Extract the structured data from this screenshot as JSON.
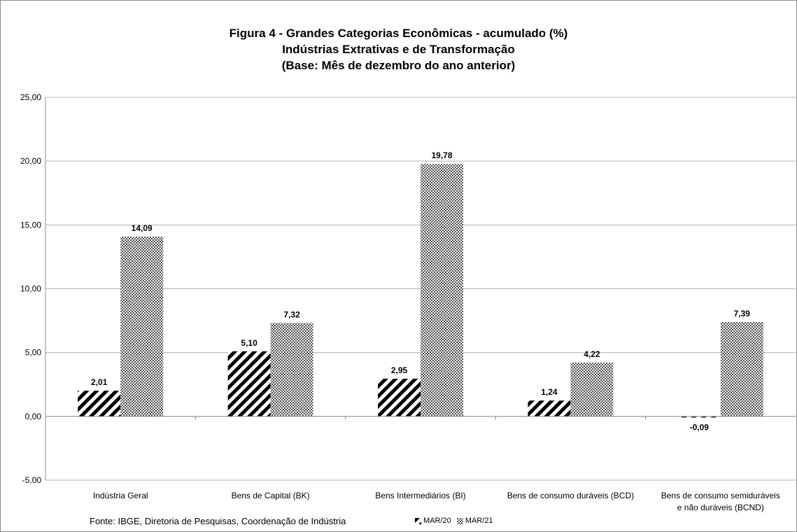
{
  "chart_data": {
    "type": "bar",
    "title": "Figura 4 - Grandes Categorias Econômicas - acumulado (%)",
    "subtitle_line1": "Indústrias Extrativas e de Transformação",
    "subtitle_line2": "(Base: Mês de dezembro do ano anterior)",
    "categories": [
      [
        "Indústria Geral"
      ],
      [
        "Bens de Capital (BK)"
      ],
      [
        "Bens Intermediários (BI)"
      ],
      [
        "Bens de consumo duráveis (BCD)"
      ],
      [
        "Bens de consumo semiduráveis",
        "e não duráveis (BCND)"
      ]
    ],
    "series": [
      {
        "name": "MAR/20",
        "values": [
          2.01,
          5.1,
          2.95,
          1.24,
          -0.09
        ],
        "labels": [
          "2,01",
          "5,10",
          "2,95",
          "1,24",
          "-0,09"
        ],
        "pattern": "diagonal-stripes"
      },
      {
        "name": "MAR/21",
        "values": [
          14.09,
          7.32,
          19.78,
          4.22,
          7.39
        ],
        "labels": [
          "14,09",
          "7,32",
          "19,78",
          "4,22",
          "7,39"
        ],
        "pattern": "checkered"
      }
    ],
    "ylim": [
      -5,
      25
    ],
    "yticks": [
      25,
      20,
      15,
      10,
      5,
      0,
      -5
    ],
    "ytick_labels": [
      "25,00",
      "20,00",
      "15,00",
      "10,00",
      "5,00",
      "0,00",
      "-5,00"
    ],
    "grid": true,
    "legend_position": "bottom",
    "source": "Fonte: IBGE, Diretoria de Pesquisas, Coordenação de Indústria"
  }
}
